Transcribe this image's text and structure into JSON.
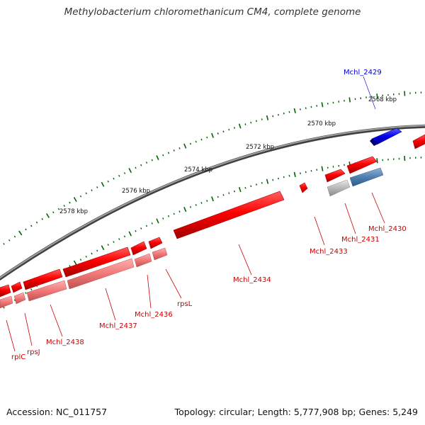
{
  "title": "Methylobacterium chloromethanicum CM4, complete genome",
  "footer": {
    "accession": "Accession: NC_011757",
    "summary": "Topology: circular; Length: 5,777,908 bp; Genes: 5,249"
  },
  "colors": {
    "forward_gene": "#ff0000",
    "forward_gene_light": "#f08080",
    "reverse_gene": "#0000dd",
    "reverse_gene_light": "#4f7fb0",
    "pseudo_gray": "#b8b8b8",
    "backbone": "#808080",
    "tick": "#006400",
    "label_red": "#cc0000",
    "label_blue": "#0000cc"
  },
  "scale": {
    "unit": "kbp",
    "labels": [
      "2568 kbp",
      "2570 kbp",
      "2572 kbp",
      "2574 kbp",
      "2576 kbp",
      "2578 kbp"
    ]
  },
  "genes": [
    {
      "label": "Mchl_2429",
      "strand": "reverse"
    },
    {
      "label": "Mchl_2430",
      "strand": "reverse"
    },
    {
      "label": "Mchl_2431",
      "strand": "forward"
    },
    {
      "label": "Mchl_2433",
      "strand": "forward"
    },
    {
      "label": "Mchl_2434",
      "strand": "forward"
    },
    {
      "label": "rpsL",
      "strand": "forward"
    },
    {
      "label": "Mchl_2436",
      "strand": "forward"
    },
    {
      "label": "Mchl_2437",
      "strand": "forward"
    },
    {
      "label": "Mchl_2438",
      "strand": "forward"
    },
    {
      "label": "rpsJ",
      "strand": "forward"
    },
    {
      "label": "rplC",
      "strand": "forward"
    }
  ]
}
